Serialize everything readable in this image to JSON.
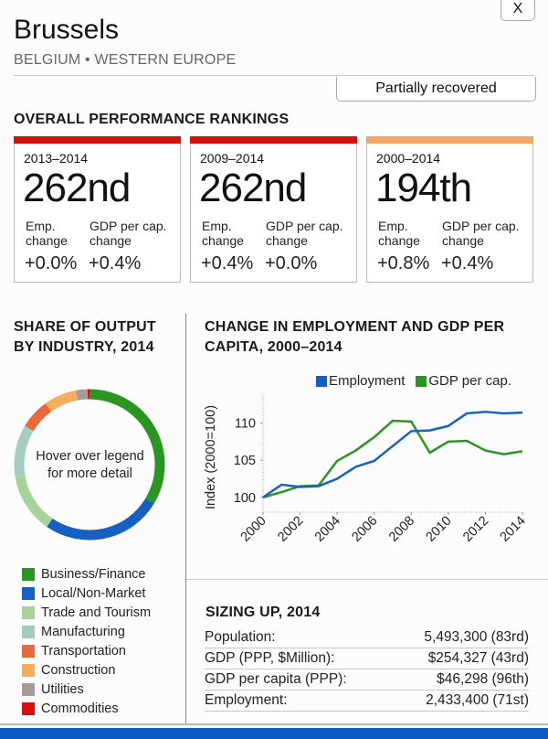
{
  "header": {
    "title": "Brussels",
    "subtitle": "BELGIUM • WESTERN EUROPE",
    "close_label": "X",
    "status": "Partially recovered"
  },
  "rankings": {
    "heading": "OVERALL PERFORMANCE RANKINGS",
    "cards": [
      {
        "period": "2013–2014",
        "rank": "262nd",
        "emp_label_1": "Emp.",
        "emp_label_2": "change",
        "gdp_label_1": "GDP per cap.",
        "gdp_label_2": "change",
        "emp_change": "+0.0%",
        "gdp_change": "+0.4%",
        "color": "#d4120c"
      },
      {
        "period": "2009–2014",
        "rank": "262nd",
        "emp_label_1": "Emp.",
        "emp_label_2": "change",
        "gdp_label_1": "GDP per cap.",
        "gdp_label_2": "change",
        "emp_change": "+0.4%",
        "gdp_change": "+0.0%",
        "color": "#d4120c"
      },
      {
        "period": "2000–2014",
        "rank": "194th",
        "emp_label_1": "Emp.",
        "emp_label_2": "change",
        "gdp_label_1": "GDP per cap.",
        "gdp_label_2": "change",
        "emp_change": "+0.8%",
        "gdp_change": "+0.4%",
        "color": "#f2a766"
      }
    ]
  },
  "share": {
    "heading_1": "SHARE OF OUTPUT",
    "heading_2": "BY INDUSTRY, 2014",
    "center_text_1": "Hover over legend",
    "center_text_2": "for more detail"
  },
  "employment_chart": {
    "heading_1": "CHANGE IN EMPLOYMENT AND GDP PER",
    "heading_2": "CAPITA, 2000–2014"
  },
  "sizing": {
    "heading": "SIZING UP, 2014",
    "rows": [
      {
        "label": "Population:",
        "value": "5,493,300 (83rd)"
      },
      {
        "label": "GDP (PPP, $Million):",
        "value": "$254,327 (43rd)"
      },
      {
        "label": "GDP per capita (PPP):",
        "value": "$46,298 (96th)"
      },
      {
        "label": "Employment:",
        "value": "2,433,400 (71st)"
      }
    ]
  },
  "chart_data": [
    {
      "type": "pie",
      "title": "SHARE OF OUTPUT BY INDUSTRY, 2014",
      "categories": [
        "Commodities",
        "Business/Finance",
        "Local/Non-Market",
        "Trade and Tourism",
        "Manufacturing",
        "Transportation",
        "Construction",
        "Utilities"
      ],
      "values": [
        0.5,
        33.5,
        26,
        13,
        11,
        6.5,
        7,
        2.5
      ],
      "unit": "percent (estimated)",
      "colors": [
        "#d4120c",
        "#2a9520",
        "#1560c0",
        "#a8d29c",
        "#a4ccc0",
        "#e8693a",
        "#f5ae5e",
        "#a89a96"
      ],
      "legend": [
        "Business/Finance",
        "Local/Non-Market",
        "Trade and Tourism",
        "Manufacturing",
        "Transportation",
        "Construction",
        "Utilities",
        "Commodities"
      ],
      "legend_colors": [
        "#2a9520",
        "#1560c0",
        "#a8d29c",
        "#a4ccc0",
        "#e8693a",
        "#f5ae5e",
        "#a89a96",
        "#d4120c"
      ],
      "center_label": "Hover over legend for more detail"
    },
    {
      "type": "line",
      "title": "CHANGE IN EMPLOYMENT AND GDP PER CAPITA, 2000–2014",
      "x": [
        2000,
        2001,
        2002,
        2003,
        2004,
        2005,
        2006,
        2007,
        2008,
        2009,
        2010,
        2011,
        2012,
        2013,
        2014
      ],
      "series": [
        {
          "name": "Employment",
          "color": "#1560c0",
          "values": [
            100,
            101.7,
            101.4,
            101.5,
            102.5,
            104.1,
            104.9,
            106.9,
            108.9,
            109.0,
            109.6,
            111.3,
            111.5,
            111.3,
            111.4
          ]
        },
        {
          "name": "GDP per cap.",
          "color": "#2a9520",
          "values": [
            100,
            100.7,
            101.5,
            101.6,
            104.9,
            106.3,
            108.1,
            110.3,
            110.2,
            106.0,
            107.5,
            107.6,
            106.3,
            105.8,
            106.2
          ]
        }
      ],
      "xlabel": "",
      "ylabel": "Index (2000=100)",
      "xticks": [
        2000,
        2002,
        2004,
        2006,
        2008,
        2010,
        2012,
        2014
      ],
      "yticks": [
        100,
        105,
        110
      ],
      "ylim": [
        98,
        114
      ],
      "xlim": [
        2000,
        2014
      ],
      "legend_position": "top-right",
      "grid": false
    }
  ]
}
